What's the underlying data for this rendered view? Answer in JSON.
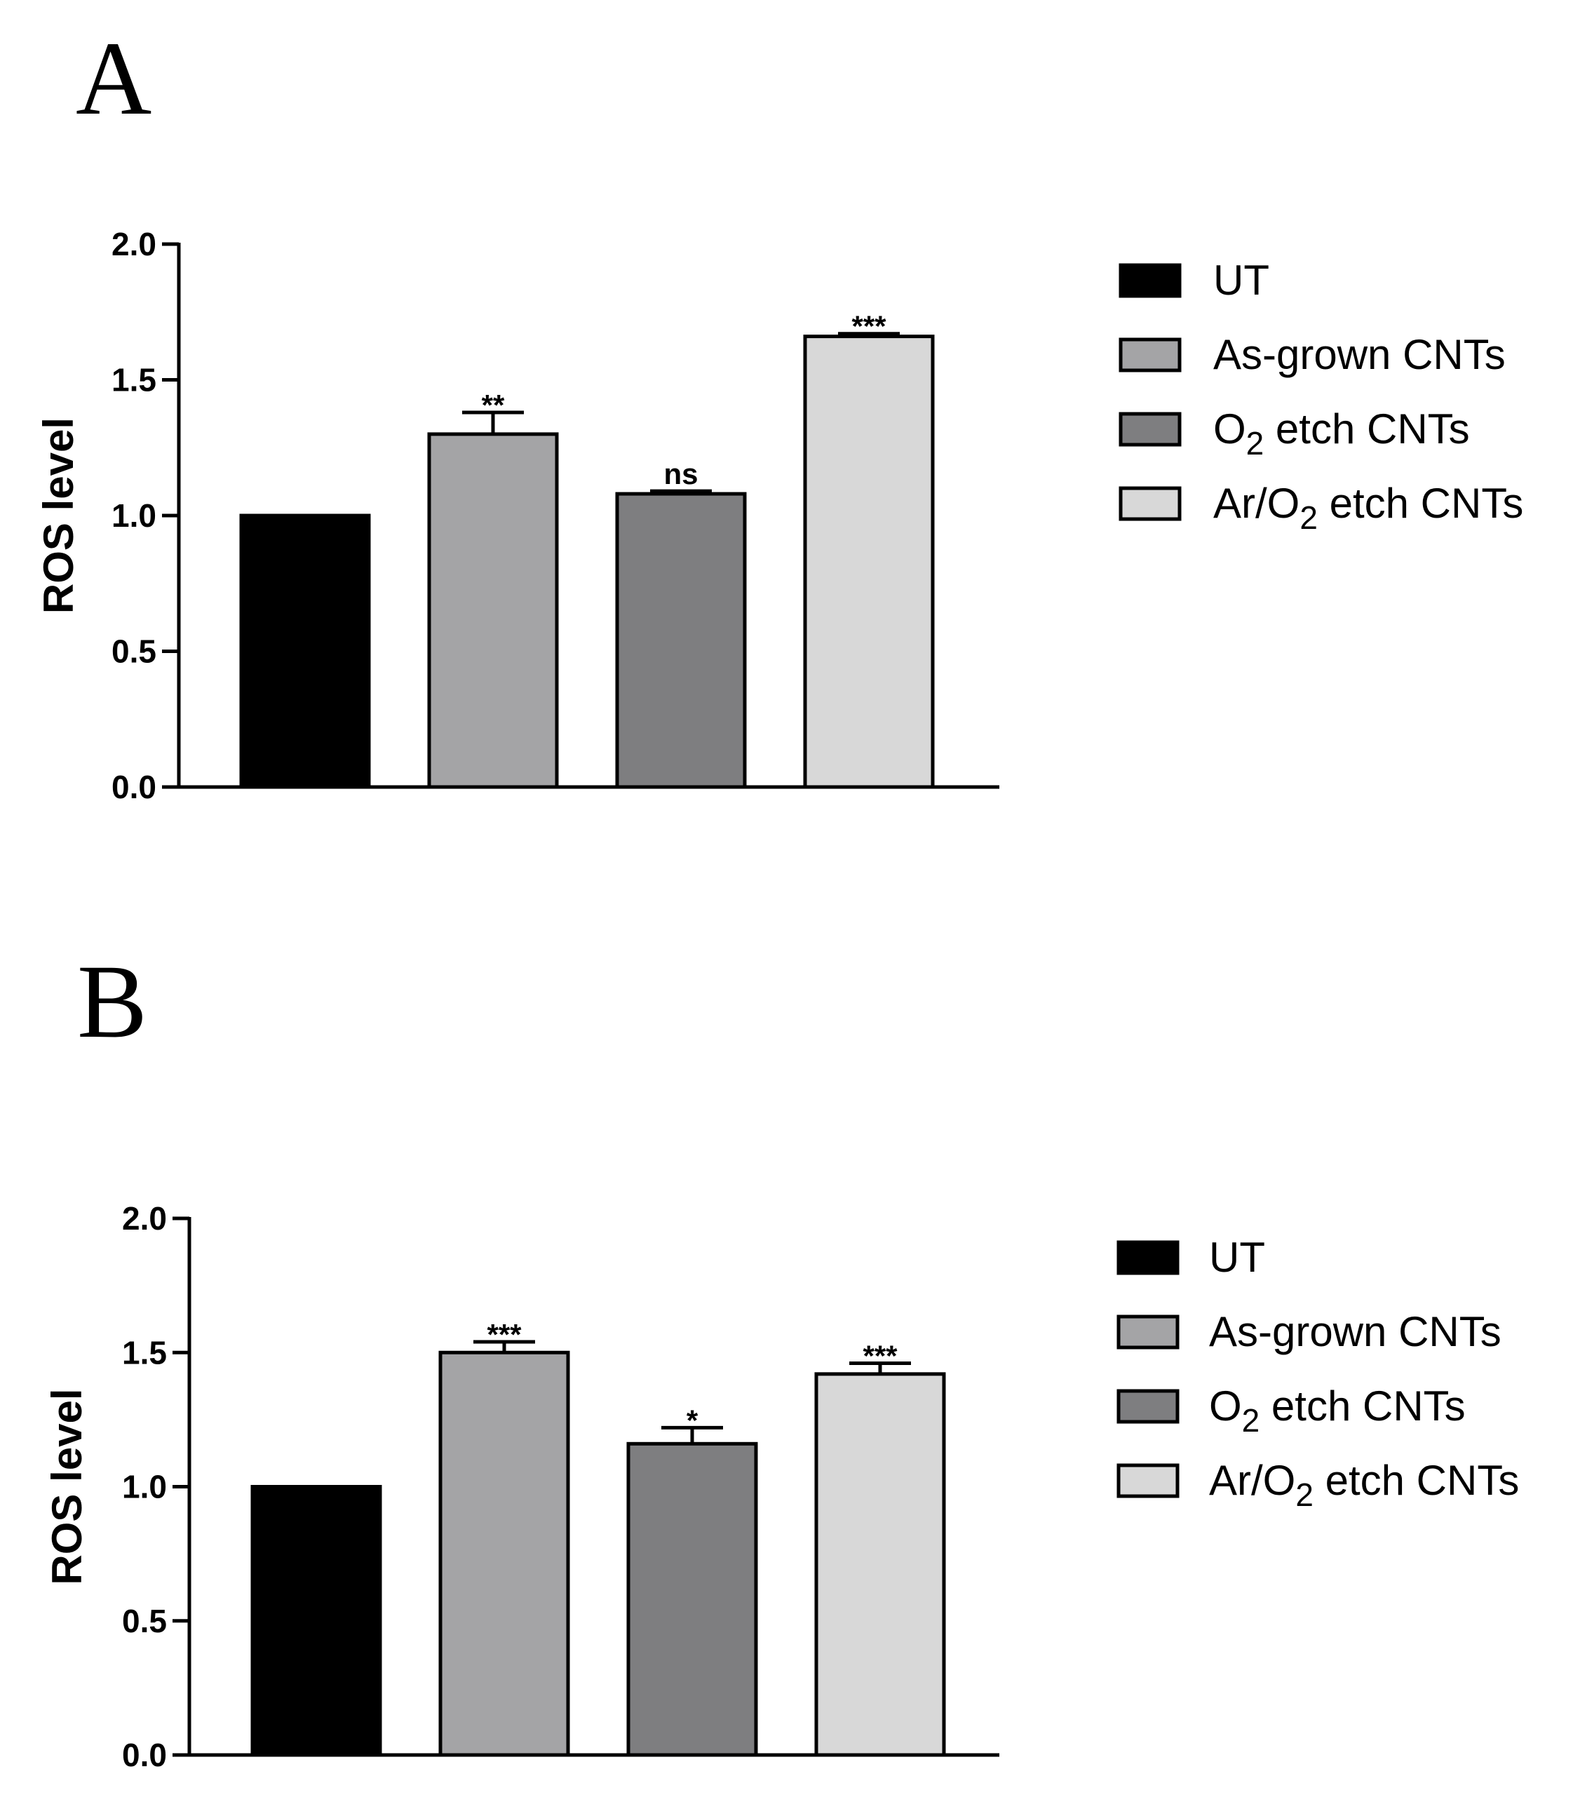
{
  "chart_data": [
    {
      "type": "bar",
      "panel": "A",
      "categories": [
        "UT",
        "As-grown CNTs",
        "O2 etch CNTs",
        "Ar/O2 etch CNTs"
      ],
      "values": [
        1.0,
        1.3,
        1.08,
        1.66
      ],
      "errors": [
        0,
        0.08,
        0.01,
        0.01
      ],
      "significance": [
        "",
        "**",
        "ns",
        "***"
      ],
      "ylabel": "ROS level",
      "xlabel": "",
      "ylim": [
        0,
        2.0
      ],
      "yticks": [
        "0.0",
        "0.5",
        "1.0",
        "1.5",
        "2.0"
      ],
      "legend": {
        "position": "right",
        "entries": [
          {
            "label": "UT"
          },
          {
            "label": "As-grown CNTs"
          },
          {
            "label": "O",
            "sub": "2",
            "rest": " etch CNTs"
          },
          {
            "label": "Ar/O",
            "sub": "2",
            "rest": " etch CNTs"
          }
        ]
      },
      "colors": [
        "#000000",
        "#a4a4a6",
        "#7e7e80",
        "#d8d8d8"
      ]
    },
    {
      "type": "bar",
      "panel": "B",
      "categories": [
        "UT",
        "As-grown CNTs",
        "O2 etch CNTs",
        "Ar/O2 etch CNTs"
      ],
      "values": [
        1.0,
        1.5,
        1.16,
        1.42
      ],
      "errors": [
        0,
        0.04,
        0.06,
        0.04
      ],
      "significance": [
        "",
        "***",
        "*",
        "***"
      ],
      "ylabel": "ROS level",
      "xlabel": "",
      "ylim": [
        0,
        2.0
      ],
      "yticks": [
        "0.0",
        "0.5",
        "1.0",
        "1.5",
        "2.0"
      ],
      "legend": {
        "position": "right",
        "entries": [
          {
            "label": "UT"
          },
          {
            "label": "As-grown CNTs"
          },
          {
            "label": "O",
            "sub": "2",
            "rest": " etch CNTs"
          },
          {
            "label": "Ar/O",
            "sub": "2",
            "rest": " etch CNTs"
          }
        ]
      },
      "colors": [
        "#000000",
        "#a4a4a6",
        "#7e7e80",
        "#d8d8d8"
      ]
    }
  ]
}
